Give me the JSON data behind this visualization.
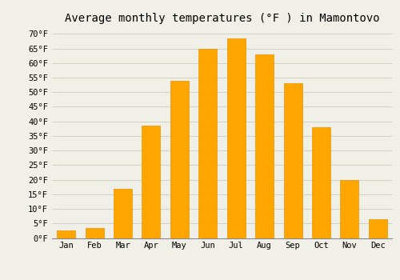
{
  "title": "Average monthly temperatures (°F ) in Mamontovo",
  "months": [
    "Jan",
    "Feb",
    "Mar",
    "Apr",
    "May",
    "Jun",
    "Jul",
    "Aug",
    "Sep",
    "Oct",
    "Nov",
    "Dec"
  ],
  "values": [
    2.5,
    3.5,
    17,
    38.5,
    54,
    65,
    68.5,
    63,
    53,
    38,
    20,
    6.5
  ],
  "bar_color": "#FFA500",
  "bar_edge_color": "#E69500",
  "ylim": [
    0,
    72
  ],
  "yticks": [
    0,
    5,
    10,
    15,
    20,
    25,
    30,
    35,
    40,
    45,
    50,
    55,
    60,
    65,
    70
  ],
  "bg_color": "#F0F0E8",
  "grid_color": "#CCCCBB",
  "title_fontsize": 10,
  "tick_fontsize": 7.5,
  "font_family": "monospace",
  "bar_width": 0.65
}
